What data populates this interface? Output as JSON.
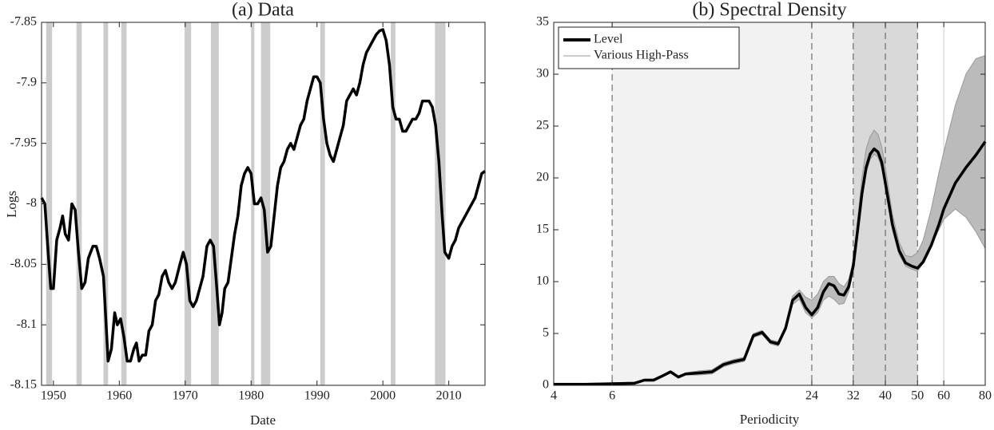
{
  "chart_data": [
    {
      "type": "line",
      "title": "(a) Data",
      "xlabel": "Date",
      "ylabel": "Logs",
      "xlim": [
        1948.2,
        2015.5
      ],
      "ylim": [
        -8.15,
        -7.85
      ],
      "xticks": [
        1950,
        1960,
        1970,
        1980,
        1990,
        2000,
        2010
      ],
      "yticks": [
        -8.15,
        -8.1,
        -8.05,
        -8,
        -7.95,
        -7.9,
        -7.85
      ],
      "shaded": [
        [
          1948.9,
          1949.8
        ],
        [
          1953.5,
          1954.3
        ],
        [
          1957.6,
          1958.3
        ],
        [
          1960.3,
          1961.1
        ],
        [
          1969.9,
          1970.9
        ],
        [
          1973.9,
          1975.1
        ],
        [
          1980.0,
          1980.5
        ],
        [
          1981.5,
          1982.9
        ],
        [
          1990.5,
          1991.2
        ],
        [
          2001.2,
          2001.9
        ],
        [
          2007.9,
          2009.5
        ]
      ],
      "shade_color": "#cccccc",
      "x": [
        1948.2,
        1948.7,
        1949.2,
        1949.6,
        1950,
        1950.5,
        1951,
        1951.4,
        1951.8,
        1952.3,
        1952.8,
        1953.3,
        1953.8,
        1954.3,
        1954.8,
        1955.3,
        1956,
        1956.5,
        1957,
        1957.6,
        1958,
        1958.3,
        1958.8,
        1959.3,
        1959.7,
        1960.2,
        1960.7,
        1961.2,
        1961.7,
        1962.2,
        1962.6,
        1963,
        1963.5,
        1964,
        1964.5,
        1965,
        1965.5,
        1966,
        1966.5,
        1967,
        1967.5,
        1968,
        1968.5,
        1969.2,
        1969.7,
        1970.2,
        1970.7,
        1971.2,
        1971.7,
        1972.2,
        1972.7,
        1973.3,
        1973.8,
        1974.3,
        1974.8,
        1975.2,
        1975.6,
        1976,
        1976.5,
        1977,
        1977.5,
        1978,
        1978.5,
        1979,
        1979.5,
        1980,
        1980.5,
        1981,
        1981.5,
        1982,
        1982.5,
        1983,
        1983.5,
        1984,
        1984.5,
        1985,
        1985.5,
        1986,
        1986.5,
        1987,
        1987.5,
        1988,
        1988.5,
        1989,
        1989.5,
        1990,
        1990.5,
        1991,
        1991.5,
        1992,
        1992.5,
        1993,
        1993.5,
        1994,
        1994.5,
        1995,
        1995.5,
        1996,
        1996.5,
        1997,
        1997.5,
        1998,
        1998.5,
        1999,
        1999.5,
        2000,
        2000.5,
        2001,
        2001.5,
        2002,
        2002.5,
        2003,
        2003.5,
        2004,
        2004.5,
        2005,
        2005.5,
        2006,
        2006.5,
        2007,
        2007.5,
        2008,
        2008.5,
        2009,
        2009.4,
        2010,
        2010.5,
        2011,
        2011.5,
        2012,
        2012.5,
        2013,
        2013.5,
        2014,
        2014.5,
        2015,
        2015.5
      ],
      "series": [
        {
          "color": "#000000",
          "values": [
            -7.995,
            -8.0,
            -8.04,
            -8.07,
            -8.07,
            -8.03,
            -8.02,
            -8.01,
            -8.025,
            -8.03,
            -8.0,
            -8.005,
            -8.04,
            -8.07,
            -8.065,
            -8.045,
            -8.035,
            -8.035,
            -8.045,
            -8.06,
            -8.1,
            -8.13,
            -8.12,
            -8.09,
            -8.1,
            -8.095,
            -8.11,
            -8.13,
            -8.13,
            -8.12,
            -8.115,
            -8.13,
            -8.125,
            -8.125,
            -8.105,
            -8.1,
            -8.08,
            -8.075,
            -8.06,
            -8.055,
            -8.065,
            -8.07,
            -8.065,
            -8.05,
            -8.04,
            -8.05,
            -8.08,
            -8.085,
            -8.08,
            -8.07,
            -8.06,
            -8.035,
            -8.03,
            -8.035,
            -8.07,
            -8.1,
            -8.09,
            -8.07,
            -8.065,
            -8.045,
            -8.025,
            -8.01,
            -7.985,
            -7.975,
            -7.97,
            -7.975,
            -8.0,
            -8.0,
            -7.995,
            -8.005,
            -8.04,
            -8.035,
            -8.01,
            -7.985,
            -7.97,
            -7.965,
            -7.955,
            -7.95,
            -7.955,
            -7.945,
            -7.935,
            -7.93,
            -7.915,
            -7.905,
            -7.895,
            -7.895,
            -7.9,
            -7.93,
            -7.95,
            -7.96,
            -7.965,
            -7.955,
            -7.945,
            -7.935,
            -7.915,
            -7.91,
            -7.905,
            -7.91,
            -7.9,
            -7.885,
            -7.875,
            -7.87,
            -7.865,
            -7.86,
            -7.857,
            -7.856,
            -7.865,
            -7.885,
            -7.92,
            -7.93,
            -7.93,
            -7.94,
            -7.94,
            -7.935,
            -7.93,
            -7.93,
            -7.925,
            -7.915,
            -7.915,
            -7.915,
            -7.92,
            -7.935,
            -7.965,
            -8.01,
            -8.04,
            -8.045,
            -8.035,
            -8.03,
            -8.02,
            -8.015,
            -8.01,
            -8.005,
            -8.0,
            -7.995,
            -7.985,
            -7.975,
            -7.973
          ]
        }
      ]
    },
    {
      "type": "line",
      "title": "(b) Spectral Density",
      "xlabel": "Periodicity",
      "xscale": "log",
      "xlim": [
        4,
        80
      ],
      "ylim": [
        0,
        35
      ],
      "xticks": [
        4,
        6,
        24,
        32,
        40,
        50,
        60,
        80
      ],
      "yticks": [
        0,
        5,
        10,
        15,
        20,
        25,
        30,
        35
      ],
      "shaded": [
        [
          6,
          50
        ],
        [
          32,
          50
        ]
      ],
      "shade_colors": [
        "#f2f2f2",
        "#d9d9d9"
      ],
      "dashed_lines": [
        6,
        24,
        32,
        40,
        50
      ],
      "solid_lines": [
        60
      ],
      "legend": "upper left",
      "x": [
        4,
        5,
        6,
        7,
        7.5,
        8,
        8.5,
        9,
        9.5,
        10,
        11,
        12,
        13,
        14,
        15,
        16,
        17,
        18,
        19,
        20,
        21,
        22,
        23,
        24,
        25,
        26,
        27,
        28,
        29,
        30,
        31,
        32,
        33,
        34,
        35,
        36,
        37,
        38,
        39,
        40,
        42,
        44,
        46,
        48,
        50,
        52,
        55,
        58,
        60,
        65,
        70,
        75,
        80
      ],
      "series": [
        {
          "name": "Various High-Pass",
          "color": "#999999",
          "upper": [
            0.2,
            0.2,
            0.25,
            0.3,
            0.6,
            0.6,
            1.0,
            1.4,
            0.9,
            1.2,
            1.4,
            1.5,
            2.2,
            2.5,
            2.7,
            5.0,
            5.3,
            4.4,
            4.2,
            5.7,
            8.6,
            9.2,
            8.5,
            8.2,
            8.8,
            10,
            10.5,
            10.5,
            9.8,
            9.5,
            10.2,
            12,
            16,
            20,
            22.8,
            24,
            24.6,
            24.2,
            23,
            21,
            16.5,
            13.8,
            12.5,
            12.4,
            12.8,
            14,
            17,
            20.5,
            22.5,
            27,
            30,
            31.5,
            31.8
          ],
          "lower": [
            0,
            0,
            0.05,
            0.1,
            0.4,
            0.4,
            0.8,
            1.2,
            0.7,
            1.0,
            1.0,
            1.1,
            1.8,
            2.1,
            2.3,
            4.6,
            4.9,
            4.0,
            3.8,
            5.3,
            7.8,
            8.3,
            7.0,
            6.5,
            7.0,
            8.2,
            8.6,
            8.3,
            7.8,
            7.9,
            9.0,
            11,
            14.5,
            18,
            20.5,
            21.8,
            22.3,
            22,
            21,
            19,
            15,
            12.6,
            11.5,
            11.2,
            11.0,
            11.8,
            13.5,
            15,
            16,
            17,
            16.2,
            14.8,
            13.2
          ]
        },
        {
          "name": "Level",
          "color": "#000000",
          "values": [
            0.1,
            0.1,
            0.15,
            0.2,
            0.5,
            0.5,
            0.9,
            1.3,
            0.8,
            1.1,
            1.2,
            1.3,
            2.0,
            2.3,
            2.5,
            4.8,
            5.1,
            4.2,
            4.0,
            5.5,
            8.2,
            8.8,
            7.5,
            6.8,
            7.5,
            9.0,
            9.8,
            9.6,
            8.8,
            8.7,
            9.5,
            11.5,
            15,
            18.5,
            21,
            22.3,
            22.8,
            22.5,
            21.5,
            19.5,
            15.5,
            13,
            11.8,
            11.5,
            11.3,
            11.9,
            13.5,
            15.5,
            17,
            19.5,
            21,
            22.2,
            23.5
          ]
        }
      ]
    }
  ]
}
